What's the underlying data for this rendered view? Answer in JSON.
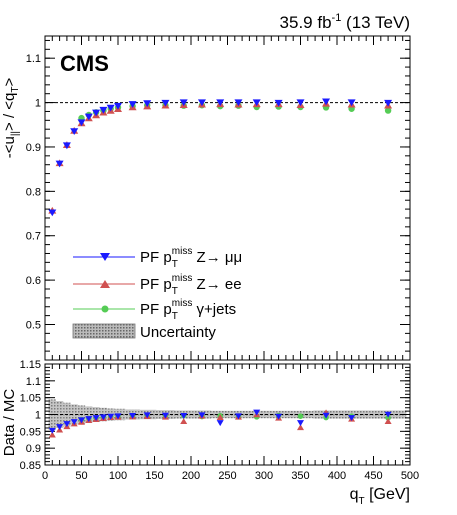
{
  "header": {
    "lumi": "35.9 fb",
    "lumi_exp": "-1",
    "energy": " (13 TeV)",
    "experiment": "CMS"
  },
  "chart_data": [
    {
      "type": "scatter",
      "ylabel_parts": [
        "-<u",
        "||",
        "> / <q",
        "T",
        ">"
      ],
      "ylim": [
        0.42,
        1.15
      ],
      "yticks": [
        0.5,
        0.6,
        0.7,
        0.8,
        0.9,
        1.0,
        1.1
      ],
      "ytick_labels": [
        "0.5",
        "0.6",
        "0.7",
        "0.8",
        "0.9",
        "1",
        "1.1"
      ],
      "xlim": [
        0,
        500
      ],
      "reference_line": 1.0,
      "legend": {
        "placement": "bottom-left",
        "entries": [
          {
            "key": "mumu",
            "pre": "PF p",
            "sub": "T",
            "sup": "miss",
            "post": " Z→ μμ",
            "color": "#1a1aff",
            "marker": "triangle-down"
          },
          {
            "key": "ee",
            "pre": "PF p",
            "sub": "T",
            "sup": "miss",
            "post": " Z→ ee",
            "color": "#d05050",
            "marker": "triangle-up"
          },
          {
            "key": "gamma",
            "pre": "PF p",
            "sub": "T",
            "sup": "miss",
            "post": " γ+jets",
            "color": "#55cc55",
            "marker": "circle"
          },
          {
            "key": "unc",
            "label": "Uncertainty",
            "color": "#999999",
            "marker": "band"
          }
        ]
      },
      "x": [
        10,
        20,
        30,
        40,
        50,
        60,
        70,
        80,
        90,
        100,
        120,
        140,
        165,
        190,
        215,
        240,
        265,
        290,
        320,
        350,
        385,
        420,
        470
      ],
      "series": [
        {
          "name": "PF p_T^miss Z→ μμ",
          "key": "mumu",
          "color": "#1a1aff",
          "marker": "triangle-down",
          "values": [
            0.752,
            0.862,
            0.903,
            0.935,
            0.955,
            0.968,
            0.977,
            0.983,
            0.988,
            0.992,
            0.996,
            0.998,
            0.999,
            1.0,
            1.0,
            1.0,
            1.0,
            1.0,
            0.999,
            1.0,
            1.002,
            1.0,
            0.999
          ]
        },
        {
          "name": "PF p_T^miss Z→ ee",
          "key": "ee",
          "color": "#d05050",
          "marker": "triangle-up",
          "values": [
            0.757,
            0.864,
            0.905,
            0.937,
            0.954,
            0.965,
            0.972,
            0.978,
            0.982,
            0.986,
            0.99,
            0.992,
            0.994,
            0.995,
            0.996,
            0.997,
            0.996,
            0.997,
            0.997,
            0.995,
            0.998,
            0.996,
            0.994
          ]
        },
        {
          "name": "PF p_T^miss γ+jets",
          "key": "gamma",
          "color": "#55cc55",
          "marker": "circle",
          "values": [
            null,
            null,
            null,
            null,
            0.965,
            0.972,
            0.978,
            0.982,
            0.986,
            0.989,
            0.992,
            0.994,
            0.994,
            0.993,
            0.994,
            0.992,
            0.993,
            0.99,
            0.991,
            0.99,
            0.989,
            0.986,
            0.982
          ]
        }
      ]
    },
    {
      "type": "scatter",
      "ylabel": "Data / MC",
      "xlabel_parts": [
        "q",
        "T",
        " [GeV]"
      ],
      "ylim": [
        0.85,
        1.15
      ],
      "yticks": [
        0.85,
        0.9,
        0.95,
        1.0,
        1.05,
        1.1,
        1.15
      ],
      "ytick_labels": [
        "0.85",
        "0.9",
        "0.95",
        "1",
        "1.05",
        "1.1",
        "1.15"
      ],
      "xlim": [
        0,
        500
      ],
      "xticks": [
        0,
        50,
        100,
        150,
        200,
        250,
        300,
        350,
        400,
        450,
        500
      ],
      "xtick_labels": [
        "0",
        "50",
        "100",
        "150",
        "200",
        "250",
        "300",
        "350",
        "400",
        "450",
        "500"
      ],
      "reference_line": 1.0,
      "uncertainty": {
        "x": [
          10,
          20,
          30,
          40,
          50,
          60,
          70,
          80,
          90,
          100,
          120,
          140,
          165,
          190,
          215,
          240,
          265,
          290,
          320,
          350,
          385,
          420,
          470
        ],
        "half_width": [
          0.045,
          0.04,
          0.035,
          0.03,
          0.027,
          0.024,
          0.022,
          0.02,
          0.018,
          0.017,
          0.015,
          0.014,
          0.013,
          0.012,
          0.012,
          0.011,
          0.011,
          0.011,
          0.011,
          0.011,
          0.012,
          0.012,
          0.012
        ]
      },
      "x": [
        10,
        20,
        30,
        40,
        50,
        60,
        70,
        80,
        90,
        100,
        120,
        140,
        165,
        190,
        215,
        240,
        265,
        290,
        320,
        350,
        385,
        420,
        470
      ],
      "series": [
        {
          "key": "mumu",
          "color": "#1a1aff",
          "marker": "triangle-down",
          "values": [
            0.952,
            0.963,
            0.972,
            0.978,
            0.983,
            0.987,
            0.99,
            0.992,
            0.994,
            0.995,
            0.996,
            0.998,
            0.997,
            0.996,
            0.998,
            0.975,
            0.995,
            1.006,
            0.994,
            0.975,
            0.997,
            0.99,
            1.0
          ]
        },
        {
          "key": "ee",
          "color": "#d05050",
          "marker": "triangle-up",
          "values": [
            0.94,
            0.955,
            0.965,
            0.973,
            0.978,
            0.983,
            0.986,
            0.989,
            0.992,
            0.993,
            0.994,
            0.995,
            0.993,
            0.98,
            0.996,
            0.992,
            0.993,
            1.0,
            0.99,
            0.962,
            1.006,
            0.987,
            0.98
          ]
        },
        {
          "key": "gamma",
          "color": "#55cc55",
          "marker": "circle",
          "values": [
            null,
            null,
            null,
            null,
            0.985,
            0.988,
            0.99,
            0.992,
            0.993,
            0.994,
            0.995,
            0.996,
            0.996,
            0.997,
            0.994,
            0.996,
            0.995,
            0.993,
            0.997,
            0.995,
            0.991,
            0.995,
            0.99
          ]
        }
      ]
    }
  ]
}
